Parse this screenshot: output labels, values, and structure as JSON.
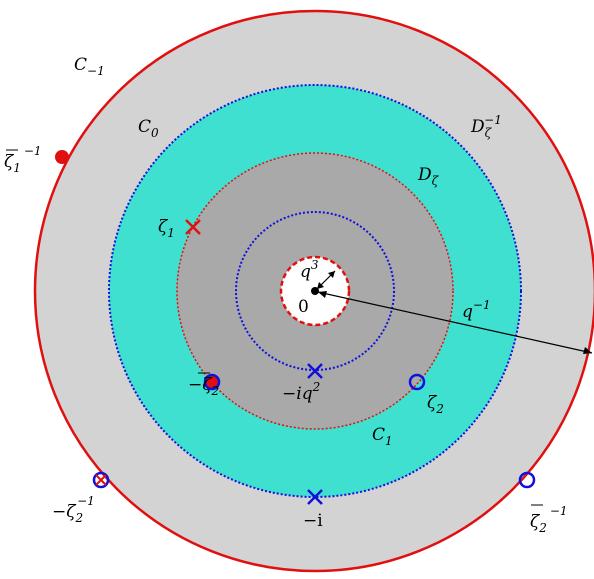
{
  "labels": {
    "c_minus1": "C",
    "c_minus1_sub": "−1",
    "c0": "C",
    "c0_sub": "0",
    "c1": "C",
    "c1_sub": "1",
    "d_zeta_inv": "D",
    "d_zeta_inv_sub": "ζ",
    "d_zeta_inv_sup": "−1",
    "d_zeta": "D",
    "d_zeta_sub": "ζ",
    "zeta1": "ζ",
    "zeta1_sub": "1",
    "zeta1bar_inv": "ζ",
    "zeta1bar_inv_sub": "1",
    "zeta1bar_inv_sup": "−1",
    "zeta2": "ζ",
    "zeta2_sub": "2",
    "neg_zeta2bar_pre": "−",
    "neg_zeta2bar": "ζ",
    "neg_zeta2bar_sub": "2",
    "neg_zeta2_inv_pre": "−",
    "neg_zeta2_inv": "ζ",
    "neg_zeta2_inv_sub": "2",
    "neg_zeta2_inv_sup": "−1",
    "zeta2bar_inv": "ζ",
    "zeta2bar_inv_sub": "2",
    "zeta2bar_inv_sup": "−1",
    "neg_iq2_pre": "−i",
    "neg_iq2": "q",
    "neg_iq2_sup": "2",
    "neg_i": "−i",
    "q3": "q",
    "q3_sup": "3",
    "qinv": "q",
    "qinv_sup": "−1",
    "origin": "0"
  },
  "colors": {
    "outer_disk": "#d3d3d3",
    "annulus": "#40e0d0",
    "inner_disk": "#a9a9a9",
    "red": "#e01010",
    "blue": "#1010dd"
  }
}
